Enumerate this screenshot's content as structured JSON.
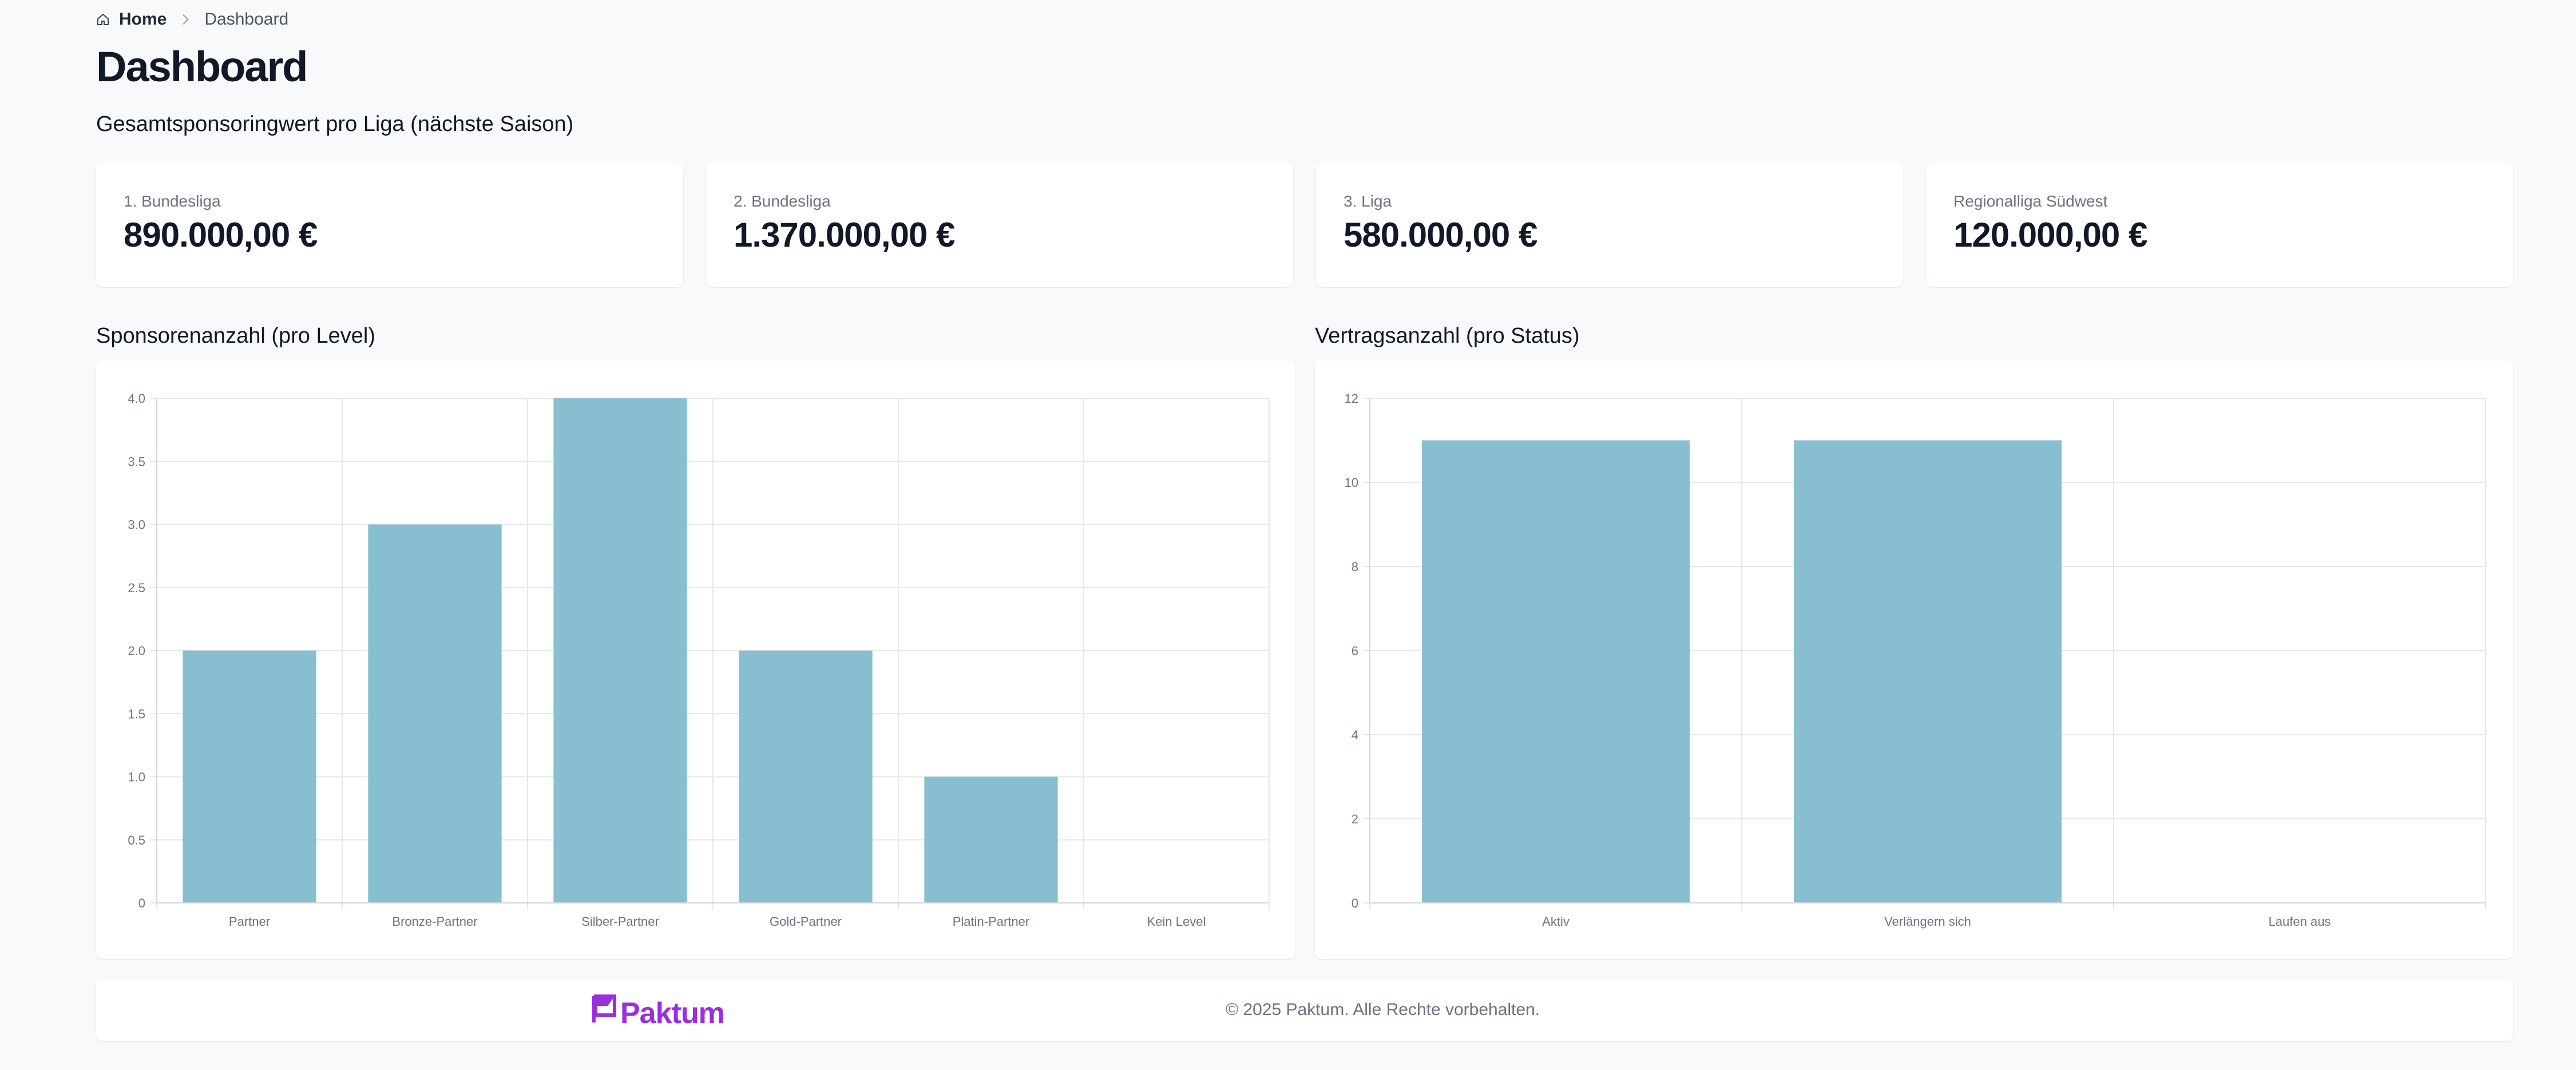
{
  "breadcrumb": {
    "home": "Home",
    "current": "Dashboard"
  },
  "page_title": "Dashboard",
  "stats_section_title": "Gesamtsponsoringwert pro Liga (nächste Saison)",
  "stats": [
    {
      "label": "1. Bundesliga",
      "value": "890.000,00 €"
    },
    {
      "label": "2. Bundesliga",
      "value": "1.370.000,00 €"
    },
    {
      "label": "3. Liga",
      "value": "580.000,00 €"
    },
    {
      "label": "Regionalliga Südwest",
      "value": "120.000,00 €"
    }
  ],
  "charts_titles": {
    "sponsors": "Sponsorenanzahl (pro Level)",
    "contracts": "Vertragsanzahl (pro Status)"
  },
  "colors": {
    "bar": "#88bfd0",
    "grid": "#e5e7eb",
    "brand": "#9b2ee0"
  },
  "chart_data": [
    {
      "type": "bar",
      "title": "Sponsorenanzahl (pro Level)",
      "categories": [
        "Partner",
        "Bronze-Partner",
        "Silber-Partner",
        "Gold-Partner",
        "Platin-Partner",
        "Kein Level"
      ],
      "values": [
        2,
        3,
        4,
        2,
        1,
        0
      ],
      "ylim": [
        0,
        4
      ],
      "yticks": [
        0,
        0.5,
        1,
        1.5,
        2,
        2.5,
        3,
        3.5,
        4
      ],
      "ytick_labels": [
        "0",
        "0.5",
        "1.0",
        "1.5",
        "2.0",
        "2.5",
        "3.0",
        "3.5",
        "4.0"
      ],
      "grid": true,
      "legend": false
    },
    {
      "type": "bar",
      "title": "Vertragsanzahl (pro Status)",
      "categories": [
        "Aktiv",
        "Verlängern sich",
        "Laufen aus"
      ],
      "values": [
        11,
        11,
        0
      ],
      "ylim": [
        0,
        12
      ],
      "yticks": [
        0,
        2,
        4,
        6,
        8,
        10,
        12
      ],
      "ytick_labels": [
        "0",
        "2",
        "4",
        "6",
        "8",
        "10",
        "12"
      ],
      "grid": true,
      "legend": false
    }
  ],
  "footer": {
    "logo_text": "Paktum",
    "logo_icon": "flag-icon",
    "copyright": "© 2025 Paktum. Alle Rechte vorbehalten."
  }
}
